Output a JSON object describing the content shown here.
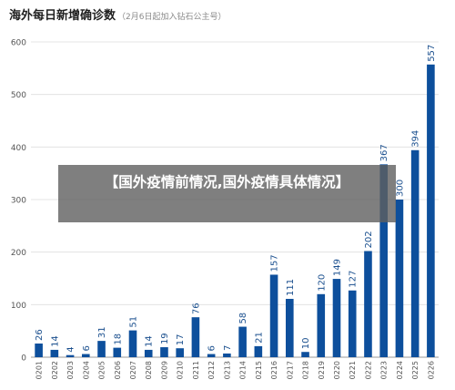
{
  "title": "海外每日新增确诊数",
  "subtitle": "（2月6日起加入钻石公主号）",
  "banner_text": "【国外疫情前情况,国外疫情具体情况】",
  "chart_data": {
    "type": "bar",
    "title": "海外每日新增确诊数",
    "subtitle": "（2月6日起加入钻石公主号）",
    "xlabel": "",
    "ylabel": "",
    "categories": [
      "0201",
      "0202",
      "0203",
      "0204",
      "0205",
      "0206",
      "0207",
      "0208",
      "0209",
      "0210",
      "0211",
      "0212",
      "0213",
      "0214",
      "0215",
      "0216",
      "0217",
      "0218",
      "0219",
      "0220",
      "0221",
      "0222",
      "0223",
      "0224",
      "0225",
      "0226"
    ],
    "values": [
      26,
      14,
      4,
      6,
      31,
      18,
      51,
      14,
      19,
      17,
      76,
      6,
      7,
      58,
      21,
      157,
      111,
      10,
      120,
      149,
      127,
      202,
      367,
      300,
      394,
      557
    ],
    "ylim": [
      0,
      600
    ],
    "yticks": [
      0,
      100,
      200,
      300,
      400,
      500,
      600
    ],
    "grid": true,
    "bar_color": "#0d4f9c",
    "legend": "none"
  }
}
